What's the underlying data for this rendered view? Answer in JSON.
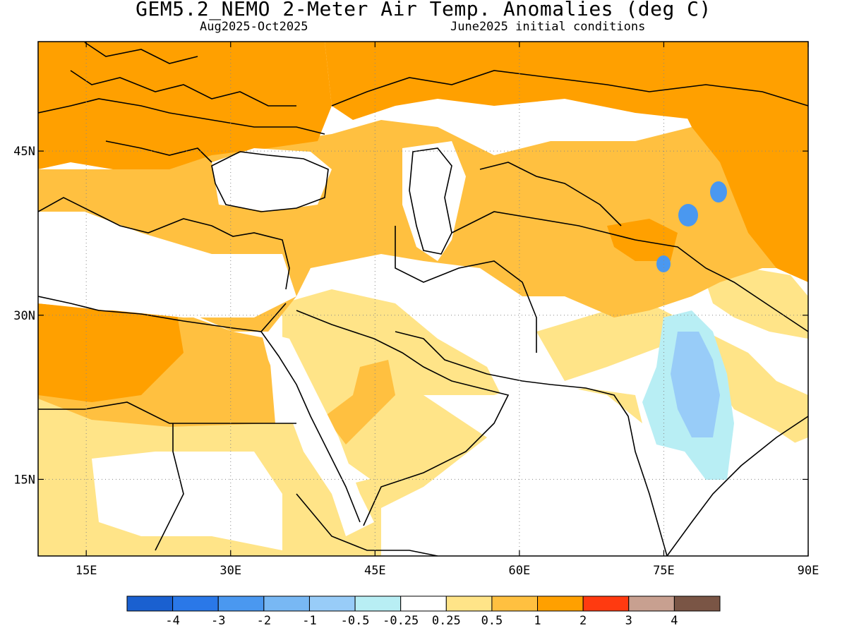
{
  "title": "GEM5.2_NEMO 2-Meter Air Temp. Anomalies (deg C)",
  "subtitle_left": "Aug2025-Oct2025",
  "subtitle_right": "June2025 initial conditions",
  "map": {
    "lon_range": [
      10,
      90
    ],
    "lat_range": [
      8,
      55
    ],
    "lon_ticks": [
      {
        "value": 15,
        "label": "15E"
      },
      {
        "value": 30,
        "label": "30E"
      },
      {
        "value": 45,
        "label": "45E"
      },
      {
        "value": 60,
        "label": "60E"
      },
      {
        "value": 75,
        "label": "75E"
      },
      {
        "value": 90,
        "label": "90E"
      }
    ],
    "lat_ticks": [
      {
        "value": 45,
        "label": "45N"
      },
      {
        "value": 30,
        "label": "30N"
      },
      {
        "value": 15,
        "label": "15N"
      }
    ],
    "grid": "dotted"
  },
  "colorbar": {
    "colors": [
      "#1a60d0",
      "#2a78e8",
      "#4a98f0",
      "#78b8f4",
      "#98ccf8",
      "#b8eef4",
      "#ffffff",
      "#ffe488",
      "#ffc040",
      "#ffa000",
      "#ff3a10",
      "#c8a090",
      "#7a5545"
    ],
    "labels": [
      "-4",
      "-3",
      "-2",
      "-1",
      "-0.5",
      "-0.25",
      "0.25",
      "0.5",
      "1",
      "2",
      "3",
      "4"
    ]
  },
  "colors": {
    "anomaly_0_5_to_1": "#ffc040",
    "anomaly_1_to_2": "#ffa000",
    "anomaly_0_25_to_0_5": "#ffe488",
    "anomaly_neg": "#b8eef4",
    "anomaly_neg_strong": "#98ccf8",
    "anomaly_neg_1_to_2": "#4a98f0"
  }
}
